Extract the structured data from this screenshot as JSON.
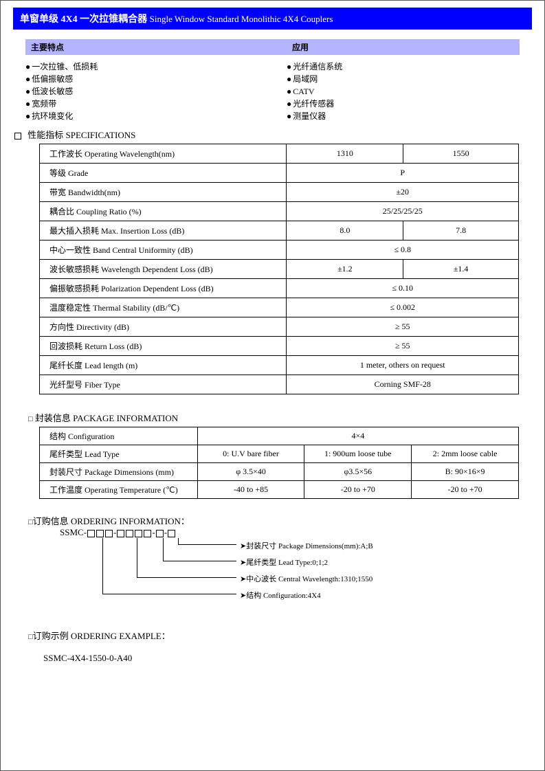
{
  "title": {
    "cn": "单窗单级 4X4 一次拉锥耦合器",
    "en": "Single Window Standard Monolithic 4X4 Couplers"
  },
  "subheader": {
    "left": "主要特点",
    "right": "应用"
  },
  "features": [
    "一次拉锥、低损耗",
    "低偏振敏感",
    "低波长敏感",
    "宽频带",
    "抗环境变化"
  ],
  "apps": [
    "光纤通信系统",
    "局域网",
    "CATV",
    "光纤传感器",
    "测量仪器"
  ],
  "spec_head": "性能指标  SPECIFICATIONS",
  "spec_rows": [
    {
      "label": "工作波长 Operating Wavelength(nm)",
      "v1": "1310",
      "v2": "1550",
      "span": false
    },
    {
      "label": "等级 Grade",
      "v": "P",
      "span": true
    },
    {
      "label": "带宽 Bandwidth(nm)",
      "v": "±20",
      "span": true
    },
    {
      "label": "耦合比 Coupling Ratio (%)",
      "v": "25/25/25/25",
      "span": true
    },
    {
      "label": "最大插入损耗 Max. Insertion Loss (dB)",
      "v1": "8.0",
      "v2": "7.8",
      "span": false
    },
    {
      "label": "中心一致性 Band Central Uniformity (dB)",
      "v": "≤ 0.8",
      "span": true
    },
    {
      "label": "波长敏感损耗  Wavelength Dependent Loss (dB)",
      "v1": "±1.2",
      "v2": "±1.4",
      "span": false
    },
    {
      "label": "偏振敏感损耗 Polarization Dependent Loss (dB)",
      "v": "≤ 0.10",
      "span": true
    },
    {
      "label": "温度稳定性 Thermal Stability (dB/℃)",
      "v": "≤ 0.002",
      "span": true
    },
    {
      "label": "方向性 Directivity (dB)",
      "v": "≥ 55",
      "span": true
    },
    {
      "label": "回波损耗 Return Loss (dB)",
      "v": "≥ 55",
      "span": true
    },
    {
      "label": "尾纤长度  Lead length (m)",
      "v": "1 meter, others on request",
      "span": true
    },
    {
      "label": "光纤型号 Fiber Type",
      "v": "Corning SMF-28",
      "span": true
    }
  ],
  "spec_colwidths": [
    "360",
    "170",
    "168"
  ],
  "pkg_head": "封装信息  PACKAGE INFORMATION",
  "pkg_rows": [
    {
      "label": "结构  Configuration",
      "cells": [
        "4×4"
      ],
      "colspan": 3
    },
    {
      "label": "尾纤类型  Lead Type",
      "cells": [
        "0: U.V bare fiber",
        "1: 900um loose tube",
        "2: 2mm loose cable"
      ]
    },
    {
      "label": "封装尺寸  Package Dimensions (mm)",
      "cells": [
        "φ 3.5×40",
        "φ3.5×56",
        "B: 90×16×9"
      ]
    },
    {
      "label": "工作温度 Operating Temperature (℃)",
      "cells": [
        "-40 to +85",
        "-20 to +70",
        "-20 to +70"
      ]
    }
  ],
  "pkg_colwidths": [
    "230",
    "156",
    "156",
    "156"
  ],
  "order_head": "订购信息 ORDERING INFORMATION：",
  "order_prefix": "SSMC-",
  "order_lines": [
    "封装尺寸 Package Dimensions(mm):A;B",
    "尾纤类型 Lead Type:0;1;2",
    "中心波长 Central Wavelength:1310;1550",
    "结构 Configuration:4X4"
  ],
  "example_head": "订购示例 ORDERING EXAMPLE：",
  "example_code": "SSMC-4X4-1550-0-A40"
}
